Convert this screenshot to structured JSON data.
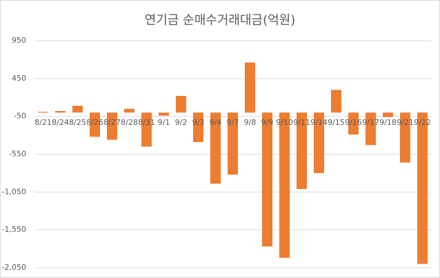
{
  "chart_data": {
    "type": "bar",
    "title": "연기금 순매수거래대금(억원)",
    "categories": [
      "8/21",
      "8/24",
      "8/25",
      "8/26",
      "8/27",
      "8/28",
      "8/31",
      "9/1",
      "9/2",
      "9/3",
      "9/4",
      "9/7",
      "9/8",
      "9/9",
      "9/10",
      "9/11",
      "9/14",
      "9/15",
      "9/16",
      "9/17",
      "9/18",
      "9/21",
      "9/22"
    ],
    "values": [
      10,
      20,
      90,
      -320,
      -360,
      50,
      -450,
      -40,
      220,
      -390,
      -940,
      -820,
      660,
      -1770,
      -1920,
      -1010,
      -800,
      300,
      -290,
      -430,
      -60,
      -660,
      -2000
    ],
    "color": "#ed7d31",
    "ylim": [
      -2050,
      950
    ],
    "yticks": [
      {
        "value": -2050,
        "label": "-2,050"
      },
      {
        "value": -1550,
        "label": "-1,550"
      },
      {
        "value": -1050,
        "label": "-1,050"
      },
      -550,
      -50,
      450,
      950
    ],
    "grid": true
  }
}
